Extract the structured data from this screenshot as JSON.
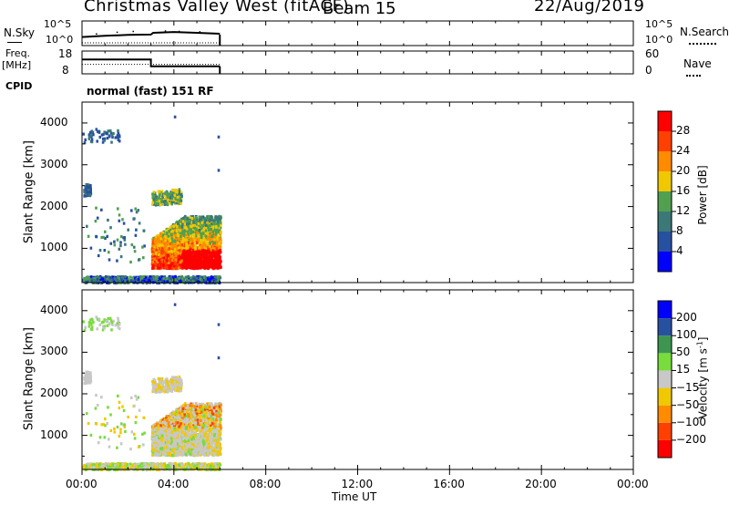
{
  "header": {
    "station": "Christmas Valley West (fitACF)",
    "beam": "Beam 15",
    "date": "22/Aug/2019"
  },
  "summary_panels": {
    "nsky": {
      "label": "N.Sky",
      "ticks": [
        "10^5",
        "10^0"
      ]
    },
    "nsearch": {
      "label": "N.Search",
      "ticks": [
        "10^5",
        "10^0"
      ]
    },
    "freq": {
      "label_line1": "Freq.",
      "label_line2": "[MHz]",
      "ticks": [
        "18",
        "8"
      ]
    },
    "nave": {
      "label": "Nave",
      "ticks": [
        "60",
        "0"
      ]
    },
    "cpid": {
      "label": "CPID",
      "value": "normal (fast) 151 RF"
    }
  },
  "x_axis": {
    "label": "Time UT",
    "ticks": [
      "00:00",
      "04:00",
      "08:00",
      "12:00",
      "16:00",
      "20:00",
      "00:00"
    ]
  },
  "colors": {
    "power_scale": [
      "#0000ff",
      "#2850a0",
      "#3c7878",
      "#50a050",
      "#f0c800",
      "#ff8c00",
      "#ff4000",
      "#ff0000"
    ],
    "velocity_scale": [
      "#ff0000",
      "#ff4000",
      "#ff8c00",
      "#f0c800",
      "#c8c8c8",
      "#78dc3c",
      "#3c9650",
      "#2850a0",
      "#0000ff"
    ]
  },
  "chart_data": [
    {
      "type": "line",
      "title": "N.Sky / N.Search",
      "x_range_hours": [
        0,
        24
      ],
      "series": [
        {
          "name": "N.Sky",
          "x": [
            0,
            1,
            2,
            3,
            3.1,
            4,
            5,
            6
          ],
          "y": [
            1.6,
            1.9,
            2.1,
            2.2,
            2.6,
            2.8,
            2.6,
            2.4
          ]
        },
        {
          "name": "N.Search",
          "x": [
            0,
            6
          ],
          "y": [
            0,
            0
          ]
        }
      ]
    },
    {
      "type": "line",
      "title": "Freq. / Nave",
      "x_range_hours": [
        0,
        24
      ],
      "series": [
        {
          "name": "Freq. [MHz]",
          "x": [
            0,
            3,
            3,
            6
          ],
          "y": [
            14.5,
            14.5,
            11,
            11
          ]
        },
        {
          "name": "Nave",
          "x": [
            0,
            6
          ],
          "y": [
            24,
            24
          ]
        }
      ]
    },
    {
      "type": "heatmap",
      "title": "Power",
      "xlabel": "",
      "ylabel": "Slant Range [km]",
      "colorbar_label": "Power [dB]",
      "colorbar_ticks": [
        4,
        8,
        12,
        16,
        20,
        24,
        28
      ],
      "x_range_hours": [
        0,
        24
      ],
      "y_range_km": [
        180,
        4500
      ],
      "yticks": [
        1000,
        2000,
        3000,
        4000
      ],
      "value_range": [
        2,
        30
      ]
    },
    {
      "type": "heatmap",
      "title": "Velocity",
      "xlabel": "Time UT",
      "ylabel": "Slant Range [km]",
      "colorbar_label": "Velocity [m s^-1]",
      "colorbar_ticks": [
        200,
        100,
        50,
        15,
        -15,
        -50,
        -100,
        -200
      ],
      "x_range_hours": [
        0,
        24
      ],
      "y_range_km": [
        180,
        4500
      ],
      "yticks": [
        1000,
        2000,
        3000,
        4000
      ]
    }
  ]
}
